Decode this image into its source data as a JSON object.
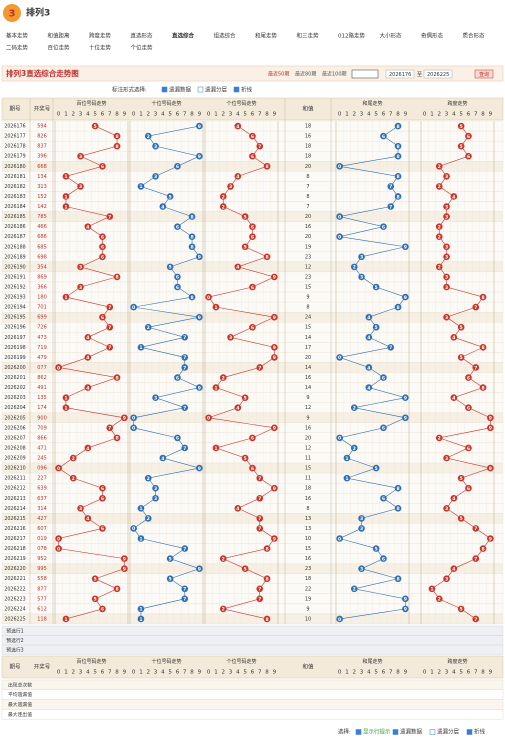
{
  "header": {
    "logo": "3",
    "title": "排列3",
    "nav": [
      "基本走势",
      "和值距离",
      "跨度走势",
      "直选形态",
      "直选综合",
      "组选综合",
      "和尾走势",
      "和三走势",
      "012路走势",
      "大小形态",
      "奇偶形态",
      "质合形态",
      "二码走势",
      "百位走势",
      "十位走势",
      "个位走势"
    ],
    "active": 4
  },
  "toolbar": {
    "title": "排列3直选综合走势图",
    "ranges": [
      "最近50期",
      "最近80期",
      "最近100期"
    ],
    "from": "2026176",
    "sep": "至",
    "to": "2026225",
    "button": "查询"
  },
  "controls": {
    "label": "标注形式选择:",
    "options": [
      "遗漏数据",
      "遗漏分层",
      "折线"
    ]
  },
  "table": {
    "headers": {
      "issue": "期号",
      "number": "开奖号",
      "hundreds": "百位号码走势",
      "tens": "十位号码走势",
      "ones": "个位号码走势",
      "sum": "和值",
      "tail": "和尾走势",
      "span": "跨度走势",
      "digits": [
        0,
        1,
        2,
        3,
        4,
        5,
        6,
        7,
        8,
        9
      ]
    },
    "issues": [
      "2026176",
      "2026177",
      "2026178",
      "2026179",
      "2026180",
      "2026181",
      "2026182",
      "2026183",
      "2026184",
      "2026185",
      "2026186",
      "2026187",
      "2026188",
      "2026189",
      "2026190",
      "2026191",
      "2026192",
      "2026193",
      "2026194",
      "2026195",
      "2026196",
      "2026197",
      "2026198",
      "2026199",
      "2026200",
      "2026201",
      "2026202",
      "2026203",
      "2026204",
      "2026205",
      "2026206",
      "2026207",
      "2026208",
      "2026209",
      "2026210",
      "2026211",
      "2026212",
      "2026213",
      "2026214",
      "2026215",
      "2026216",
      "2026217",
      "2026218",
      "2026219",
      "2026220",
      "2026221",
      "2026222",
      "2026223",
      "2026224",
      "2026225"
    ],
    "numbers": [
      "594",
      "826",
      "837",
      "396",
      "668",
      "134",
      "313",
      "152",
      "142",
      "785",
      "466",
      "686",
      "685",
      "698",
      "354",
      "869",
      "366",
      "180",
      "701",
      "699",
      "726",
      "473",
      "719",
      "479",
      "077",
      "862",
      "491",
      "135",
      "174",
      "900",
      "709",
      "866",
      "471",
      "245",
      "096",
      "227",
      "639",
      "637",
      "314",
      "427",
      "607",
      "019",
      "078",
      "952",
      "995",
      "558",
      "877",
      "577",
      "612",
      "118"
    ],
    "digits": [
      [
        5,
        9,
        4
      ],
      [
        8,
        2,
        6
      ],
      [
        8,
        3,
        7
      ],
      [
        3,
        9,
        6
      ],
      [
        6,
        6,
        8
      ],
      [
        1,
        3,
        4
      ],
      [
        3,
        1,
        3
      ],
      [
        1,
        5,
        2
      ],
      [
        1,
        4,
        2
      ],
      [
        7,
        8,
        5
      ],
      [
        4,
        6,
        6
      ],
      [
        6,
        8,
        6
      ],
      [
        6,
        8,
        5
      ],
      [
        6,
        9,
        8
      ],
      [
        3,
        5,
        4
      ],
      [
        8,
        6,
        9
      ],
      [
        3,
        6,
        6
      ],
      [
        1,
        8,
        0
      ],
      [
        7,
        0,
        1
      ],
      [
        6,
        9,
        9
      ],
      [
        7,
        2,
        6
      ],
      [
        4,
        7,
        3
      ],
      [
        7,
        1,
        9
      ],
      [
        4,
        7,
        9
      ],
      [
        0,
        7,
        7
      ],
      [
        8,
        6,
        2
      ],
      [
        4,
        9,
        1
      ],
      [
        1,
        3,
        5
      ],
      [
        1,
        7,
        4
      ],
      [
        9,
        0,
        0
      ],
      [
        7,
        0,
        9
      ],
      [
        8,
        6,
        6
      ],
      [
        4,
        7,
        1
      ],
      [
        2,
        4,
        5
      ],
      [
        0,
        9,
        6
      ],
      [
        2,
        2,
        7
      ],
      [
        6,
        3,
        9
      ],
      [
        6,
        3,
        7
      ],
      [
        3,
        1,
        4
      ],
      [
        4,
        2,
        7
      ],
      [
        6,
        0,
        7
      ],
      [
        0,
        1,
        9
      ],
      [
        0,
        7,
        8
      ],
      [
        9,
        5,
        2
      ],
      [
        9,
        9,
        5
      ],
      [
        5,
        5,
        8
      ],
      [
        8,
        7,
        7
      ],
      [
        5,
        7,
        7
      ],
      [
        6,
        1,
        2
      ],
      [
        1,
        1,
        8
      ]
    ],
    "sums": [
      18,
      16,
      18,
      18,
      20,
      8,
      7,
      8,
      7,
      20,
      16,
      20,
      19,
      23,
      12,
      23,
      15,
      9,
      8,
      24,
      15,
      14,
      17,
      20,
      14,
      16,
      14,
      9,
      12,
      9,
      16,
      20,
      12,
      11,
      15,
      11,
      18,
      16,
      8,
      13,
      13,
      10,
      15,
      16,
      23,
      18,
      22,
      19,
      9,
      10
    ],
    "tails": [
      8,
      6,
      8,
      8,
      0,
      8,
      7,
      8,
      7,
      0,
      6,
      0,
      9,
      3,
      2,
      3,
      5,
      9,
      8,
      4,
      5,
      4,
      7,
      0,
      4,
      6,
      4,
      9,
      2,
      9,
      6,
      0,
      2,
      1,
      5,
      1,
      8,
      6,
      8,
      3,
      3,
      0,
      5,
      6,
      3,
      8,
      2,
      9,
      9,
      0
    ],
    "spans": [
      5,
      6,
      5,
      6,
      2,
      3,
      2,
      4,
      3,
      3,
      2,
      2,
      3,
      3,
      2,
      3,
      3,
      8,
      7,
      3,
      5,
      4,
      8,
      5,
      7,
      6,
      8,
      4,
      6,
      9,
      9,
      2,
      6,
      3,
      9,
      5,
      6,
      4,
      3,
      5,
      7,
      9,
      8,
      7,
      4,
      3,
      1,
      2,
      5,
      7
    ],
    "preselect": [
      "预选行1",
      "预选行2",
      "预选行3"
    ],
    "stats": [
      "出现总次数",
      "平均遗漏值",
      "最大遗漏值",
      "最大连出值"
    ]
  },
  "footer": {
    "label": "选择:",
    "options": [
      "显示行提示",
      "遗漏数据",
      "遗漏分层",
      "折线"
    ]
  }
}
